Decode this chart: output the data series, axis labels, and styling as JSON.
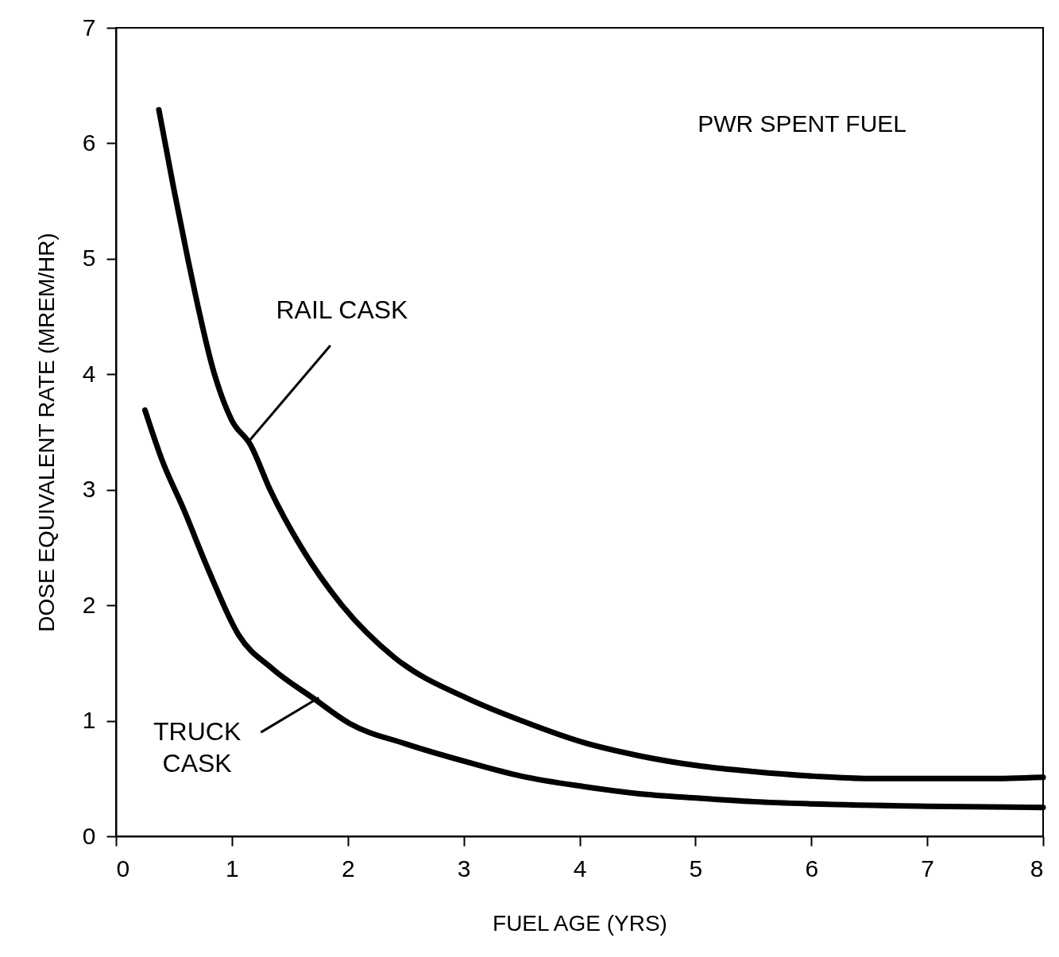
{
  "chart_data": {
    "type": "line",
    "xlabel": "FUEL AGE (YRS)",
    "ylabel": "DOSE EQUIVALENT RATE (MREM/HR)",
    "xlim": [
      0,
      8
    ],
    "xticks": [
      0,
      1,
      2,
      3,
      4,
      5,
      6,
      7,
      8
    ],
    "ylim": [
      0,
      7
    ],
    "yticks": [
      0,
      1,
      2,
      3,
      4,
      5,
      6,
      7
    ],
    "marker": "none",
    "line_style": "solid",
    "series": [
      {
        "color": "#000000",
        "x": [
          0.37,
          0.5,
          0.62,
          0.85,
          1.0,
          1.16,
          1.33,
          1.6,
          1.95,
          2.4,
          3.04,
          3.5,
          4.04,
          4.5,
          5.03,
          5.5,
          6.02,
          6.5,
          7.02,
          7.5,
          8
        ],
        "values": [
          6.29,
          5.6,
          5.0,
          4.0,
          3.6,
          3.39,
          3.0,
          2.5,
          2.0,
          1.55,
          1.19,
          1.0,
          0.81,
          0.7,
          0.61,
          0.56,
          0.52,
          0.5,
          0.5,
          0.5,
          0.51
        ]
      },
      {
        "color": "#000000",
        "x": [
          0.25,
          0.4,
          0.58,
          0.8,
          1.06,
          1.35,
          1.71,
          2.01,
          2.5,
          3.04,
          3.5,
          4.04,
          4.5,
          5.03,
          5.5,
          6.02,
          7,
          8
        ],
        "values": [
          3.69,
          3.25,
          2.84,
          2.3,
          1.74,
          1.45,
          1.19,
          0.98,
          0.8,
          0.64,
          0.52,
          0.43,
          0.37,
          0.33,
          0.3,
          0.28,
          0.26,
          0.25
        ]
      }
    ],
    "annotations": [
      "PWR SPENT FUEL",
      {
        "text": "RAIL CASK",
        "x": 1.13,
        "y": 3.4
      },
      {
        "text": "TRUCK CASK",
        "x": 1.75,
        "y": 1.2
      }
    ]
  }
}
